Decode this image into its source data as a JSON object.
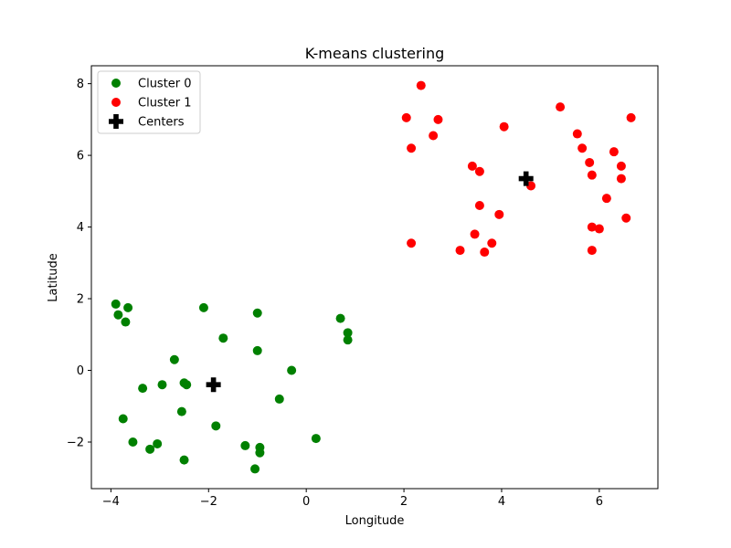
{
  "chart_data": {
    "type": "scatter",
    "title": "K-means clustering",
    "xlabel": "Longitude",
    "ylabel": "Latitude",
    "xlim": [
      -4.4,
      7.2
    ],
    "ylim": [
      -3.3,
      8.5
    ],
    "xticks": [
      -4,
      -2,
      0,
      2,
      4,
      6
    ],
    "yticks": [
      -2,
      0,
      2,
      4,
      6,
      8
    ],
    "tick_labels_x": [
      "−4",
      "−2",
      "0",
      "2",
      "4",
      "6"
    ],
    "tick_labels_y": [
      "−2",
      "0",
      "2",
      "4",
      "6",
      "8"
    ],
    "grid": false,
    "legend_position": "top-left",
    "series": [
      {
        "name": "Cluster 0",
        "color": "#008000",
        "marker": "circle",
        "points": [
          [
            -3.9,
            1.85
          ],
          [
            -3.85,
            1.55
          ],
          [
            -3.65,
            1.75
          ],
          [
            -3.7,
            1.35
          ],
          [
            -3.75,
            -1.35
          ],
          [
            -3.55,
            -2.0
          ],
          [
            -3.35,
            -0.5
          ],
          [
            -3.2,
            -2.2
          ],
          [
            -3.05,
            -2.05
          ],
          [
            -2.95,
            -0.4
          ],
          [
            -2.7,
            0.3
          ],
          [
            -2.55,
            -1.15
          ],
          [
            -2.5,
            -0.35
          ],
          [
            -2.45,
            -0.4
          ],
          [
            -2.5,
            -2.5
          ],
          [
            -2.1,
            1.75
          ],
          [
            -1.85,
            -1.55
          ],
          [
            -1.7,
            0.9
          ],
          [
            -1.25,
            -2.1
          ],
          [
            -1.0,
            1.6
          ],
          [
            -1.0,
            0.55
          ],
          [
            -0.95,
            -2.15
          ],
          [
            -0.95,
            -2.3
          ],
          [
            -1.05,
            -2.75
          ],
          [
            -0.55,
            -0.8
          ],
          [
            -0.3,
            0.0
          ],
          [
            0.2,
            -1.9
          ],
          [
            0.7,
            1.45
          ],
          [
            0.85,
            1.05
          ],
          [
            0.85,
            0.85
          ]
        ]
      },
      {
        "name": "Cluster 1",
        "color": "#ff0000",
        "marker": "circle",
        "points": [
          [
            2.05,
            7.05
          ],
          [
            2.35,
            7.95
          ],
          [
            2.15,
            6.2
          ],
          [
            2.6,
            6.55
          ],
          [
            2.7,
            7.0
          ],
          [
            2.15,
            3.55
          ],
          [
            3.15,
            3.35
          ],
          [
            3.4,
            5.7
          ],
          [
            3.55,
            5.55
          ],
          [
            3.45,
            3.8
          ],
          [
            3.55,
            4.6
          ],
          [
            3.65,
            3.3
          ],
          [
            3.8,
            3.55
          ],
          [
            3.95,
            4.35
          ],
          [
            4.05,
            6.8
          ],
          [
            4.6,
            5.15
          ],
          [
            5.2,
            7.35
          ],
          [
            5.55,
            6.6
          ],
          [
            5.65,
            6.2
          ],
          [
            5.8,
            5.8
          ],
          [
            5.85,
            5.45
          ],
          [
            5.85,
            4.0
          ],
          [
            5.85,
            3.35
          ],
          [
            6.0,
            3.95
          ],
          [
            6.15,
            4.8
          ],
          [
            6.3,
            6.1
          ],
          [
            6.45,
            5.35
          ],
          [
            6.45,
            5.7
          ],
          [
            6.55,
            4.25
          ],
          [
            6.65,
            7.05
          ]
        ]
      },
      {
        "name": "Centers",
        "color": "#000000",
        "marker": "plus",
        "points": [
          [
            -1.9,
            -0.4
          ],
          [
            4.5,
            5.35
          ]
        ]
      }
    ]
  }
}
